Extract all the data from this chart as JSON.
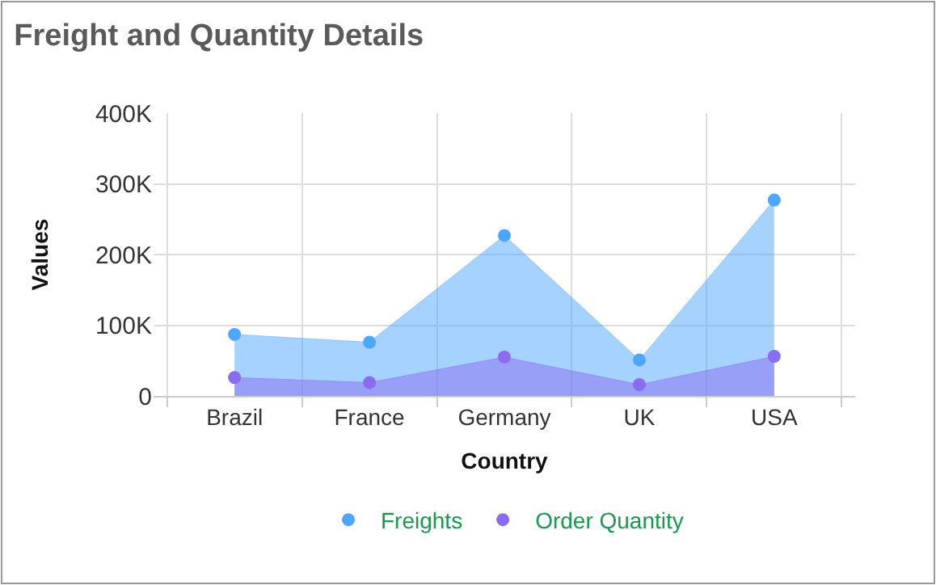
{
  "chart_data": {
    "type": "area",
    "title": "Freight and Quantity Details",
    "xlabel": "Country",
    "ylabel": "Values",
    "categories": [
      "Brazil",
      "France",
      "Germany",
      "UK",
      "USA"
    ],
    "series": [
      {
        "name": "Freights",
        "color": "#4da6ff",
        "values": [
          87000,
          76000,
          227000,
          51000,
          277000
        ]
      },
      {
        "name": "Order Quantity",
        "color": "#8a6cf0",
        "values": [
          26000,
          19000,
          55000,
          16000,
          56000
        ]
      }
    ],
    "ylim": [
      0,
      400000
    ],
    "yticks": [
      {
        "value": 0,
        "label": "0"
      },
      {
        "value": 100000,
        "label": "100K"
      },
      {
        "value": 200000,
        "label": "200K"
      },
      {
        "value": 300000,
        "label": "300K"
      },
      {
        "value": 400000,
        "label": "400K"
      }
    ],
    "grid": true,
    "legend": "bottom",
    "marker": "circle"
  }
}
